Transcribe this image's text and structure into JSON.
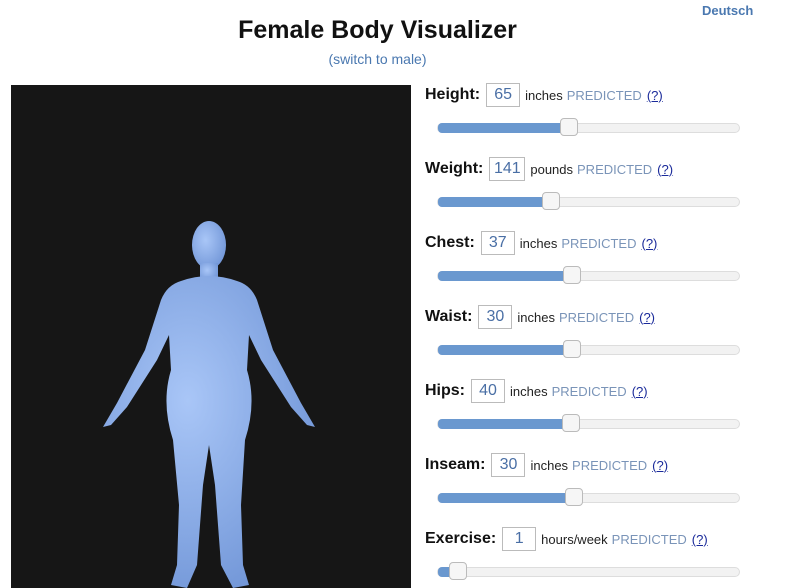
{
  "header": {
    "language_link": "Deutsch",
    "title": "Female Body Visualizer",
    "switch_link": "(switch to male)"
  },
  "colors": {
    "accent": "#6a98cf",
    "body": "#8fb2ef",
    "viewer_bg": "#161616"
  },
  "fields": [
    {
      "label": "Height:",
      "value": "65",
      "unit": "inches",
      "status": "PREDICTED",
      "help": "(?)",
      "slider_fraction": 0.436
    },
    {
      "label": "Weight:",
      "value": "141",
      "unit": "pounds",
      "status": "PREDICTED",
      "help": "(?)",
      "slider_fraction": 0.376
    },
    {
      "label": "Chest:",
      "value": "37",
      "unit": "inches",
      "status": "PREDICTED",
      "help": "(?)",
      "slider_fraction": 0.446
    },
    {
      "label": "Waist:",
      "value": "30",
      "unit": "inches",
      "status": "PREDICTED",
      "help": "(?)",
      "slider_fraction": 0.446
    },
    {
      "label": "Hips:",
      "value": "40",
      "unit": "inches",
      "status": "PREDICTED",
      "help": "(?)",
      "slider_fraction": 0.443
    },
    {
      "label": "Inseam:",
      "value": "30",
      "unit": "inches",
      "status": "PREDICTED",
      "help": "(?)",
      "slider_fraction": 0.452
    },
    {
      "label": "Exercise:",
      "value": "1",
      "unit": "hours/week",
      "status": "PREDICTED",
      "help": "(?)",
      "slider_fraction": 0.066
    }
  ]
}
